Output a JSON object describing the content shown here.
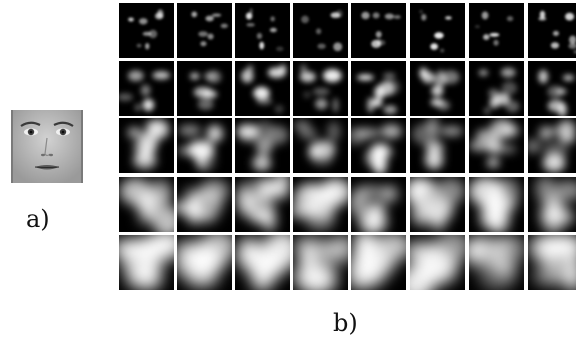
{
  "figure": {
    "label_a": "a)",
    "label_b": "b)",
    "grid": {
      "rows": 5,
      "cols": 8
    }
  },
  "colors": {
    "background": "#ffffff",
    "cell": "#000000",
    "feature": "#ffffff"
  }
}
